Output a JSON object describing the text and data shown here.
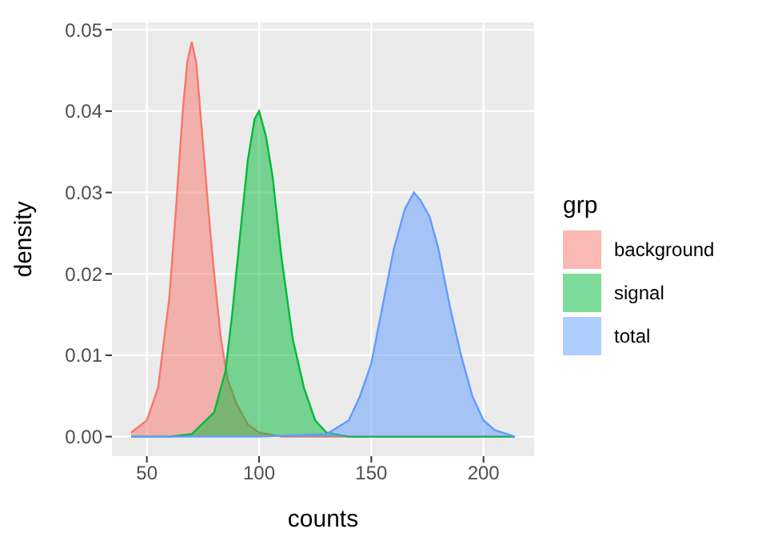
{
  "chart_data": {
    "type": "area",
    "xlabel": "counts",
    "ylabel": "density",
    "legend_title": "grp",
    "xlim": [
      34.45,
      222.55
    ],
    "ylim": [
      -0.0024,
      0.0509
    ],
    "xticks": [
      50,
      100,
      150,
      200
    ],
    "yticks": [
      {
        "value": 0,
        "label": "0.00"
      },
      0.01,
      0.02,
      0.03,
      0.04,
      0.05
    ],
    "grid": true,
    "legend": "right",
    "series": [
      {
        "name": "background",
        "color": "#f8766d",
        "x": [
          43,
          50,
          55,
          60,
          63,
          66,
          68,
          70,
          72,
          75,
          78,
          80,
          83,
          86,
          90,
          95,
          100,
          110,
          130,
          160,
          214
        ],
        "values": [
          0.0005,
          0.002,
          0.006,
          0.017,
          0.028,
          0.04,
          0.046,
          0.0485,
          0.046,
          0.036,
          0.026,
          0.02,
          0.012,
          0.007,
          0.004,
          0.0015,
          0.0005,
          0,
          0,
          0,
          0
        ]
      },
      {
        "name": "signal",
        "color": "#00ba38",
        "x": [
          43,
          60,
          70,
          80,
          85,
          88,
          92,
          95,
          98,
          100,
          103,
          106,
          110,
          115,
          120,
          125,
          130,
          140,
          170,
          214
        ],
        "values": [
          0,
          0,
          0.0003,
          0.003,
          0.008,
          0.015,
          0.026,
          0.034,
          0.039,
          0.04,
          0.037,
          0.032,
          0.022,
          0.012,
          0.006,
          0.002,
          0.0005,
          0,
          0,
          0
        ]
      },
      {
        "name": "total",
        "color": "#619cff",
        "x": [
          43,
          100,
          130,
          140,
          145,
          150,
          155,
          160,
          165,
          169,
          172,
          176,
          180,
          185,
          190,
          195,
          200,
          205,
          214
        ],
        "values": [
          0,
          0,
          0.0003,
          0.002,
          0.005,
          0.009,
          0.016,
          0.023,
          0.028,
          0.03,
          0.029,
          0.027,
          0.023,
          0.016,
          0.01,
          0.005,
          0.002,
          0.0008,
          0
        ]
      }
    ]
  }
}
